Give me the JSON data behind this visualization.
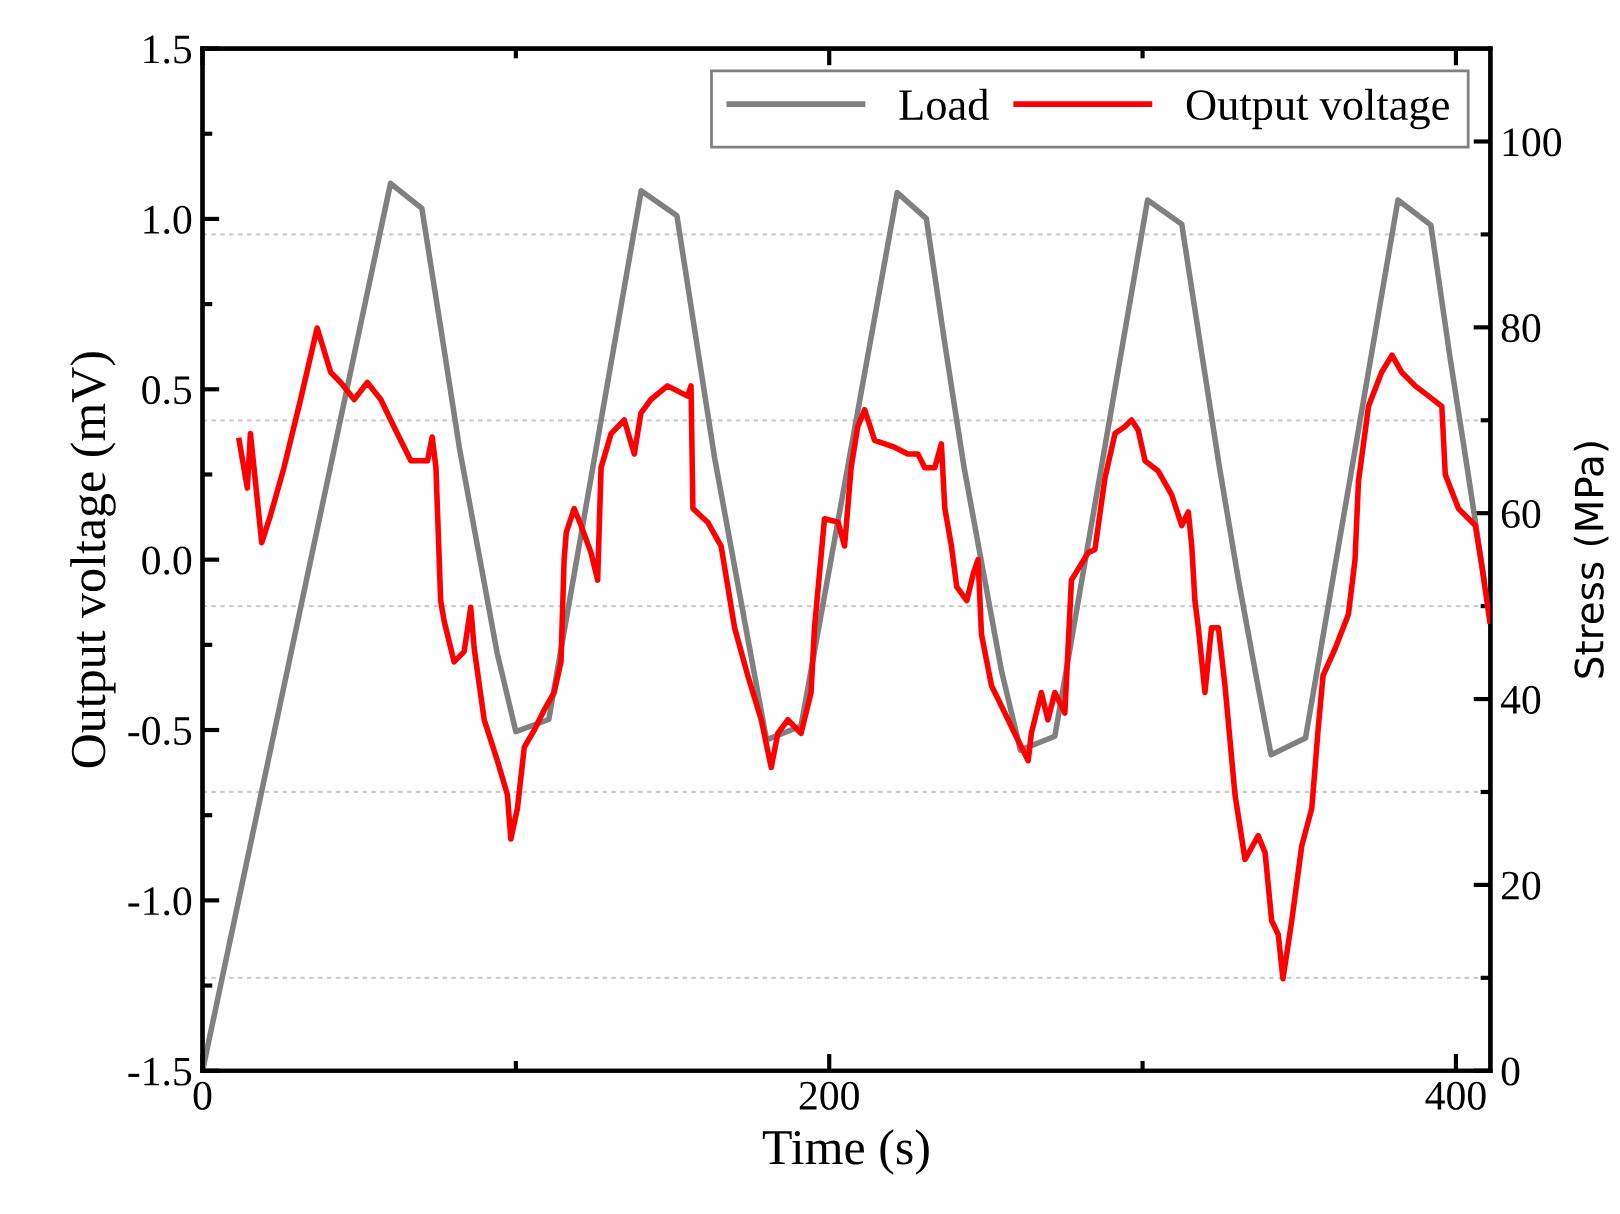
{
  "chart_data": {
    "type": "line",
    "xlabel": "Time (s)",
    "ylabel": "Output voltage (mV)",
    "y2label": "Stress (MPa)",
    "xlim": [
      0,
      411
    ],
    "xticks": [
      0,
      {
        "value": 100,
        "label": null
      },
      200,
      {
        "value": 300,
        "label": null
      },
      400
    ],
    "ylim": [
      -1.5,
      1.5
    ],
    "yticks": [
      -1.5,
      {
        "value": -1.25,
        "label": null
      },
      {
        "value": -1.0,
        "label": "-1.0"
      },
      {
        "value": -0.75,
        "label": null
      },
      -0.5,
      {
        "value": -0.25,
        "label": null
      },
      {
        "value": 0.0,
        "label": "0.0"
      },
      {
        "value": 0.25,
        "label": null
      },
      0.5,
      {
        "value": 0.75,
        "label": null
      },
      {
        "value": 1.0,
        "label": "1.0"
      },
      {
        "value": 1.25,
        "label": null
      },
      1.5
    ],
    "y2lim": [
      0,
      110
    ],
    "y2ticks": [
      0,
      {
        "value": 10,
        "label": null
      },
      20,
      {
        "value": 30,
        "label": null
      },
      40,
      {
        "value": 50,
        "label": null
      },
      60,
      {
        "value": 70,
        "label": null
      },
      80,
      {
        "value": 90,
        "label": null
      },
      100
    ],
    "grid": "y",
    "legend": "top right",
    "line_style": "solid",
    "marker": "none",
    "series": [
      {
        "name": "Load",
        "color": "#808080",
        "axis": "y2",
        "x": [
          0,
          60,
          70,
          76,
          82,
          88,
          94,
          100,
          110.5,
          140,
          151.4,
          157.4,
          163.4,
          169.4,
          175.4,
          180,
          191,
          221.7,
          231,
          237,
          243,
          249,
          255,
          261,
          272,
          301.6,
          312.5,
          318.5,
          324.5,
          330.5,
          336.5,
          341,
          352,
          381.5,
          392,
          398,
          404,
          409
        ],
        "values": [
          0,
          95.5,
          92.8,
          80,
          67,
          56,
          45,
          36.5,
          37.8,
          94.7,
          92,
          79,
          66,
          55,
          44,
          35.6,
          37.1,
          94.5,
          91.7,
          78,
          65,
          54,
          43,
          34.5,
          36,
          93.7,
          91.1,
          78,
          65,
          53,
          42,
          34,
          35.8,
          93.7,
          91,
          77,
          64,
          52.8
        ]
      },
      {
        "name": "Output voltage",
        "color": "#ff0000",
        "x": [
          11.7,
          14.3,
          15.3,
          18.9,
          21.7,
          26,
          31.3,
          36.6,
          40.9,
          44.1,
          48.4,
          52.6,
          56.9,
          61.1,
          66.5,
          71.8,
          73.3,
          74.5,
          76,
          77.1,
          80.3,
          83.5,
          85.6,
          86.7,
          89.9,
          94.1,
          97.3,
          98.4,
          100.5,
          102.7,
          105.9,
          109.1,
          112.2,
          114.4,
          115.4,
          116.1,
          118.6,
          120.8,
          124,
          126.1,
          127.2,
          130.4,
          134.6,
          137.8,
          139.9,
          143.1,
          148.4,
          154.8,
          155.9,
          156.5,
          161.2,
          165.5,
          169.8,
          174,
          178.3,
          181.5,
          183.6,
          186.8,
          191,
          194.2,
          195.3,
          198.5,
          202.8,
          204.9,
          207,
          209.1,
          211.3,
          214.5,
          220.8,
          225.1,
          228.3,
          230.5,
          233.7,
          235.8,
          236.9,
          239,
          240.7,
          243.9,
          246,
          247.5,
          248.6,
          251.8,
          255,
          259.2,
          263.5,
          264.5,
          267.7,
          269.8,
          272,
          275.2,
          277.3,
          282.6,
          284.8,
          288,
          291.2,
          294.3,
          296.5,
          298.6,
          300.8,
          305,
          309.3,
          312.5,
          314.6,
          315.7,
          316.7,
          317.8,
          319.9,
          322,
          324.2,
          326.3,
          329.5,
          332.7,
          336.9,
          339.1,
          341.2,
          343.3,
          344.8,
          347.6,
          350.8,
          354,
          356.1,
          357.6,
          361.5,
          365.7,
          367.8,
          368.9,
          372.1,
          376.3,
          379.6,
          382.7,
          387,
          391.3,
          395.5,
          396.6,
          400.8,
          406.2,
          408.3,
          410.8
        ],
        "values": [
          0.35,
          0.21,
          0.37,
          0.05,
          0.13,
          0.27,
          0.47,
          0.68,
          0.55,
          0.52,
          0.47,
          0.52,
          0.47,
          0.39,
          0.29,
          0.29,
          0.36,
          0.27,
          -0.12,
          -0.18,
          -0.3,
          -0.27,
          -0.14,
          -0.26,
          -0.47,
          -0.59,
          -0.69,
          -0.82,
          -0.73,
          -0.55,
          -0.5,
          -0.44,
          -0.39,
          -0.3,
          0.0,
          0.08,
          0.15,
          0.1,
          0.02,
          -0.06,
          0.27,
          0.37,
          0.41,
          0.31,
          0.43,
          0.47,
          0.51,
          0.48,
          0.51,
          0.15,
          0.11,
          0.04,
          -0.2,
          -0.34,
          -0.47,
          -0.61,
          -0.51,
          -0.47,
          -0.51,
          -0.39,
          -0.2,
          0.12,
          0.11,
          0.04,
          0.27,
          0.39,
          0.44,
          0.35,
          0.33,
          0.31,
          0.31,
          0.27,
          0.27,
          0.34,
          0.15,
          0.04,
          -0.08,
          -0.12,
          -0.04,
          0.0,
          -0.22,
          -0.37,
          -0.43,
          -0.51,
          -0.59,
          -0.51,
          -0.39,
          -0.47,
          -0.39,
          -0.45,
          -0.06,
          0.02,
          0.03,
          0.24,
          0.37,
          0.39,
          0.41,
          0.38,
          0.29,
          0.26,
          0.19,
          0.1,
          0.14,
          0.04,
          -0.12,
          -0.2,
          -0.39,
          -0.2,
          -0.2,
          -0.37,
          -0.69,
          -0.88,
          -0.81,
          -0.86,
          -1.06,
          -1.1,
          -1.23,
          -1.06,
          -0.84,
          -0.73,
          -0.49,
          -0.34,
          -0.26,
          -0.16,
          0.0,
          0.23,
          0.45,
          0.55,
          0.6,
          0.55,
          0.51,
          0.48,
          0.45,
          0.25,
          0.15,
          0.1,
          -0.02,
          -0.18
        ]
      }
    ]
  }
}
